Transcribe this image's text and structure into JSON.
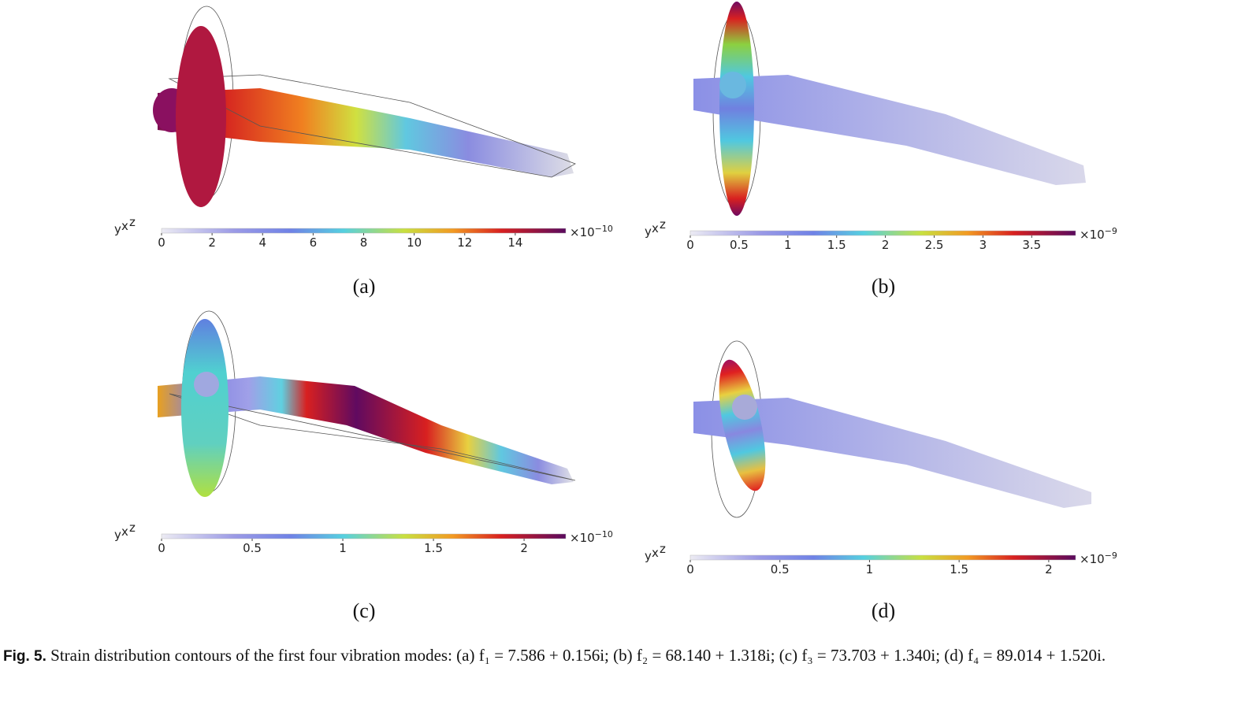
{
  "figure": {
    "panels": [
      {
        "label": "(a)",
        "triad": [
          "y",
          "x",
          "z"
        ],
        "colorbar": {
          "lim": [
            0,
            16
          ],
          "ticks": [
            0,
            2,
            4,
            6,
            8,
            10,
            12,
            14
          ],
          "multiplier_base": "×10",
          "multiplier_exp": "−10"
        }
      },
      {
        "label": "(b)",
        "triad": [
          "y",
          "x",
          "z"
        ],
        "colorbar": {
          "lim": [
            0,
            3.95
          ],
          "ticks": [
            0,
            0.5,
            1,
            1.5,
            2,
            2.5,
            3,
            3.5
          ],
          "multiplier_base": "×10",
          "multiplier_exp": "−9"
        }
      },
      {
        "label": "(c)",
        "triad": [
          "y",
          "x",
          "z"
        ],
        "colorbar": {
          "lim": [
            0,
            2.23
          ],
          "ticks": [
            0,
            0.5,
            1,
            1.5,
            2
          ],
          "multiplier_base": "×10",
          "multiplier_exp": "−10"
        }
      },
      {
        "label": "(d)",
        "triad": [
          "y",
          "x",
          "z"
        ],
        "colorbar": {
          "lim": [
            0,
            2.15
          ],
          "ticks": [
            0,
            0.5,
            1,
            1.5,
            2
          ],
          "multiplier_base": "×10",
          "multiplier_exp": "−9"
        }
      }
    ],
    "caption": {
      "label": "Fig. 5.",
      "text": "Strain distribution contours of the first four vibration modes: (a) f₁ = 7.586 + 0.156i; (b) f₂ = 68.140 + 1.318i; (c) f₃ = 73.703 + 1.340i; (d) f₄ = 89.014 + 1.520i."
    }
  }
}
